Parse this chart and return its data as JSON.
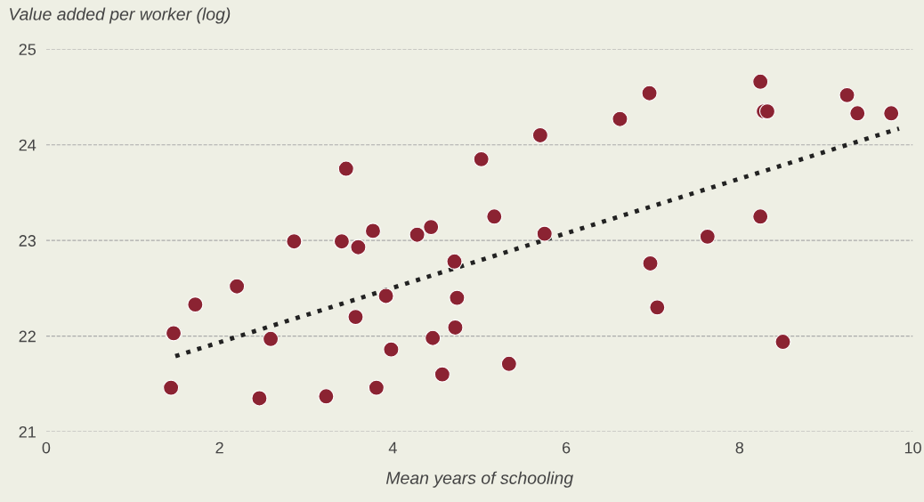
{
  "chart_data": {
    "type": "scatter",
    "ylabel": "Value added per worker (log)",
    "xlabel": "Mean years of schooling",
    "xlim": [
      0,
      10
    ],
    "xticks": [
      0,
      2,
      4,
      6,
      8,
      10
    ],
    "ylim": [
      21,
      25
    ],
    "yticks": [
      21,
      22,
      23,
      24,
      25
    ],
    "grid": "y",
    "series": [
      {
        "color": "#8b2332",
        "marker": "circle",
        "x": [
          1.44,
          1.47,
          1.72,
          2.2,
          2.46,
          2.59,
          2.86,
          3.23,
          3.41,
          3.46,
          3.57,
          3.6,
          3.77,
          3.81,
          3.92,
          3.98,
          4.28,
          4.44,
          4.46,
          4.57,
          4.72,
          4.74,
          4.71,
          5.02,
          5.17,
          5.34,
          5.7,
          5.75,
          6.62,
          6.96,
          6.97,
          7.05,
          7.63,
          8.24,
          8.24,
          8.28,
          8.32,
          8.5,
          9.24,
          9.36,
          9.75
        ],
        "values": [
          21.46,
          22.03,
          22.33,
          22.52,
          21.35,
          21.97,
          22.99,
          21.37,
          22.99,
          23.75,
          22.2,
          22.93,
          23.1,
          21.46,
          22.42,
          21.86,
          23.06,
          23.14,
          21.98,
          21.6,
          22.09,
          22.4,
          22.78,
          23.85,
          23.25,
          21.71,
          24.1,
          23.07,
          24.27,
          24.54,
          22.76,
          22.3,
          23.04,
          24.66,
          23.25,
          24.35,
          24.35,
          21.94,
          24.52,
          24.33,
          24.33
        ]
      },
      {
        "type": "line",
        "color": "#222222",
        "line_style": "dotted",
        "x": [
          1.49,
          9.84
        ],
        "values": [
          21.79,
          24.17
        ]
      }
    ]
  }
}
